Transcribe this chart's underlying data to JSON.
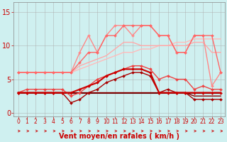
{
  "background_color": "#cff0f0",
  "grid_color": "#aaaaaa",
  "xlabel": "Vent moyen/en rafales ( km/h )",
  "xlabel_color": "#cc0000",
  "xlabel_fontsize": 7,
  "yticks": [
    0,
    5,
    10,
    15
  ],
  "xticks": [
    0,
    1,
    2,
    3,
    4,
    5,
    6,
    7,
    8,
    9,
    10,
    11,
    12,
    13,
    14,
    15,
    16,
    17,
    18,
    19,
    20,
    21,
    22,
    23
  ],
  "ylim": [
    -0.5,
    16.5
  ],
  "xlim": [
    -0.5,
    23.5
  ],
  "lines": [
    {
      "x": [
        0,
        1,
        2,
        3,
        4,
        5,
        6,
        7,
        8,
        9,
        10,
        11,
        12,
        13,
        14,
        15,
        16,
        17,
        18,
        19,
        20,
        21,
        22,
        23
      ],
      "y": [
        6,
        6,
        6,
        6,
        6,
        6,
        6,
        6.5,
        7,
        7.5,
        8,
        8.5,
        9,
        9,
        9.5,
        9.5,
        10,
        10,
        10.5,
        10.5,
        11,
        11,
        11,
        11
      ],
      "color": "#ffbbbb",
      "lw": 1.0,
      "marker": null,
      "zorder": 2
    },
    {
      "x": [
        0,
        1,
        2,
        3,
        4,
        5,
        6,
        7,
        8,
        9,
        10,
        11,
        12,
        13,
        14,
        15,
        16,
        17,
        18,
        19,
        20,
        21,
        22,
        23
      ],
      "y": [
        6,
        6,
        6,
        6,
        6,
        6,
        6,
        7,
        7.5,
        8,
        8.5,
        9.5,
        10.5,
        10.5,
        10,
        10,
        10,
        10,
        10,
        10,
        10.5,
        10.5,
        9,
        9
      ],
      "color": "#ffaaaa",
      "lw": 1.0,
      "marker": null,
      "zorder": 2
    },
    {
      "x": [
        0,
        1,
        2,
        3,
        4,
        5,
        6,
        7,
        8,
        9,
        10,
        11,
        12,
        13,
        14,
        15,
        16,
        17,
        18,
        19,
        20,
        21,
        22,
        23
      ],
      "y": [
        6,
        6,
        6,
        6,
        6,
        6,
        6,
        9,
        11.5,
        9,
        11.5,
        13,
        13,
        11.5,
        13,
        13,
        11.5,
        11.5,
        9,
        9,
        11.5,
        11.5,
        4,
        6
      ],
      "color": "#ff8888",
      "lw": 1.0,
      "marker": "D",
      "markersize": 2.0,
      "zorder": 3
    },
    {
      "x": [
        0,
        1,
        2,
        3,
        4,
        5,
        6,
        7,
        8,
        9,
        10,
        11,
        12,
        13,
        14,
        15,
        16,
        17,
        18,
        19,
        20,
        21,
        22,
        23
      ],
      "y": [
        6,
        6,
        6,
        6,
        6,
        6,
        6,
        7.5,
        9,
        9,
        11.5,
        11.5,
        13,
        13,
        13,
        13,
        11.5,
        11.5,
        9,
        9,
        11.5,
        11.5,
        11.5,
        6
      ],
      "color": "#ff6666",
      "lw": 1.0,
      "marker": "D",
      "markersize": 2.0,
      "zorder": 3
    },
    {
      "x": [
        0,
        1,
        2,
        3,
        4,
        5,
        6,
        7,
        8,
        9,
        10,
        11,
        12,
        13,
        14,
        15,
        16,
        17,
        18,
        19,
        20,
        21,
        22,
        23
      ],
      "y": [
        3,
        3.5,
        3.5,
        3.5,
        3.5,
        3.5,
        2.5,
        3,
        4,
        5,
        5.5,
        6,
        6.5,
        7,
        7,
        6.5,
        5,
        5.5,
        5,
        5,
        3.5,
        4,
        3.5,
        3.5
      ],
      "color": "#ee4444",
      "lw": 1.0,
      "marker": "D",
      "markersize": 2.0,
      "zorder": 4
    },
    {
      "x": [
        0,
        1,
        2,
        3,
        4,
        5,
        6,
        7,
        8,
        9,
        10,
        11,
        12,
        13,
        14,
        15,
        16,
        17,
        18,
        19,
        20,
        21,
        22,
        23
      ],
      "y": [
        3,
        3,
        3,
        3,
        3,
        3,
        3,
        3.5,
        4,
        4.5,
        5.5,
        6,
        6.5,
        6.5,
        6.5,
        6,
        3,
        3,
        3,
        3,
        3,
        3,
        3,
        3
      ],
      "color": "#cc0000",
      "lw": 1.5,
      "marker": "D",
      "markersize": 2.0,
      "zorder": 5
    },
    {
      "x": [
        0,
        1,
        2,
        3,
        4,
        5,
        6,
        7,
        8,
        9,
        10,
        11,
        12,
        13,
        14,
        15,
        16,
        17,
        18,
        19,
        20,
        21,
        22,
        23
      ],
      "y": [
        3,
        3,
        3,
        3,
        3,
        3,
        1.5,
        2,
        3,
        3.5,
        4.5,
        5,
        5.5,
        6,
        6,
        5.5,
        3,
        3.5,
        3,
        3,
        2,
        2,
        2,
        2
      ],
      "color": "#aa0000",
      "lw": 1.0,
      "marker": "D",
      "markersize": 2.0,
      "zorder": 4
    },
    {
      "x": [
        0,
        1,
        2,
        3,
        4,
        5,
        6,
        7,
        8,
        9,
        10,
        11,
        12,
        13,
        14,
        15,
        16,
        17,
        18,
        19,
        20,
        21,
        22,
        23
      ],
      "y": [
        3,
        3,
        3,
        3,
        3,
        3,
        3,
        3,
        3,
        3,
        3,
        3,
        3,
        3,
        3,
        3,
        3,
        3,
        3,
        3,
        2.5,
        2.5,
        2.5,
        2.5
      ],
      "color": "#880000",
      "lw": 1.0,
      "marker": null,
      "zorder": 3
    },
    {
      "x": [
        0,
        1,
        2,
        3,
        4,
        5,
        6,
        7,
        8,
        9,
        10,
        11,
        12,
        13,
        14,
        15,
        16,
        17,
        18,
        19,
        20,
        21,
        22,
        23
      ],
      "y": [
        3,
        3,
        3,
        3,
        3,
        3,
        3,
        3,
        3,
        3,
        3,
        3,
        3,
        3,
        3,
        3,
        3,
        3,
        3,
        3,
        3,
        3,
        3,
        3
      ],
      "color": "#660000",
      "lw": 0.8,
      "marker": null,
      "zorder": 2
    }
  ],
  "arrow_color": "#cc0000",
  "tick_label_color": "#cc0000",
  "tick_fontsize": 5.5,
  "ytick_fontsize": 7
}
